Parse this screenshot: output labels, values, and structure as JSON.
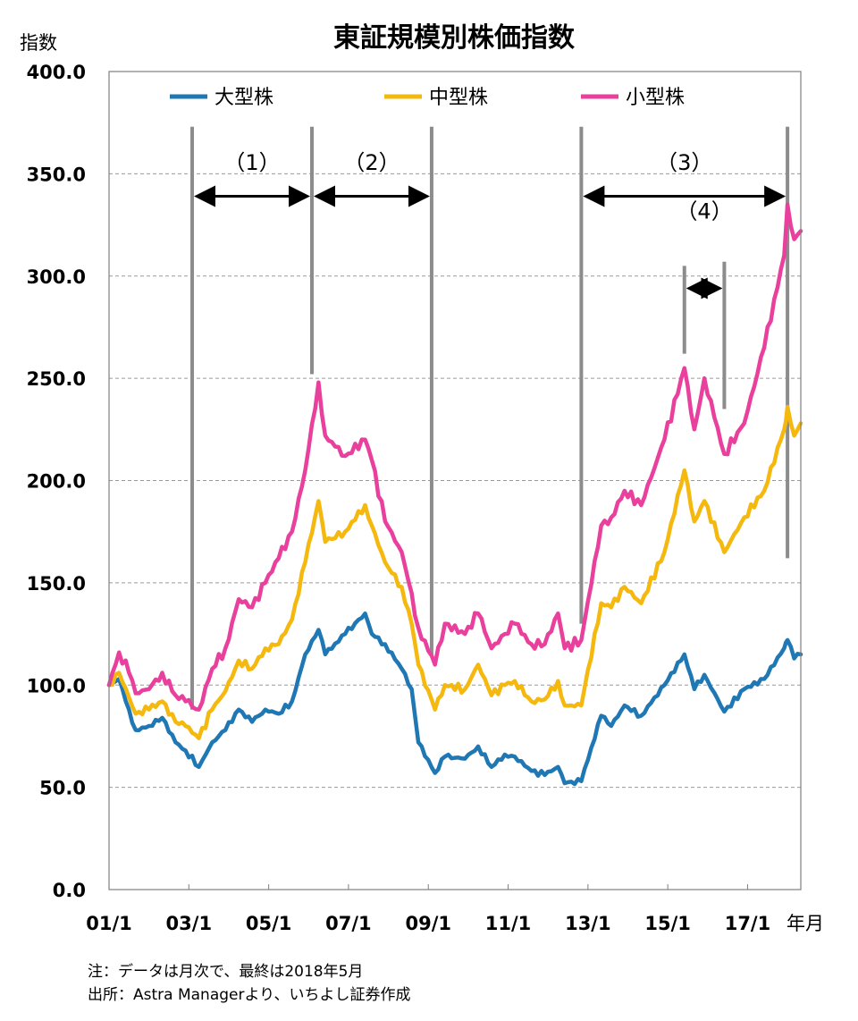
{
  "chart_data": {
    "type": "line",
    "title": "東証規模別株価指数",
    "ylabel": "指数",
    "xlabel": "年月",
    "ylim": [
      0,
      400
    ],
    "yticks": [
      "0.0",
      "50.0",
      "100.0",
      "150.0",
      "200.0",
      "250.0",
      "300.0",
      "350.0",
      "400.0"
    ],
    "xlim": [
      "2001-01",
      "2018-05"
    ],
    "xtick_labels": [
      "01/1",
      "03/1",
      "05/1",
      "07/1",
      "09/1",
      "11/1",
      "13/1",
      "15/1",
      "17/1"
    ],
    "grid": true,
    "legend_position": "top",
    "series": [
      {
        "name": "大型株",
        "color": "#1f77b4",
        "points": [
          [
            "2001-01",
            100
          ],
          [
            "2001-04",
            103
          ],
          [
            "2001-07",
            88
          ],
          [
            "2001-09",
            78
          ],
          [
            "2002-01",
            80
          ],
          [
            "2002-05",
            84
          ],
          [
            "2002-09",
            72
          ],
          [
            "2002-12",
            68
          ],
          [
            "2003-04",
            60
          ],
          [
            "2003-08",
            72
          ],
          [
            "2003-12",
            78
          ],
          [
            "2004-04",
            88
          ],
          [
            "2004-08",
            82
          ],
          [
            "2004-12",
            88
          ],
          [
            "2005-04",
            86
          ],
          [
            "2005-08",
            92
          ],
          [
            "2005-12",
            115
          ],
          [
            "2006-04",
            127
          ],
          [
            "2006-06",
            115
          ],
          [
            "2006-12",
            125
          ],
          [
            "2007-06",
            135
          ],
          [
            "2007-08",
            125
          ],
          [
            "2007-12",
            120
          ],
          [
            "2008-05",
            108
          ],
          [
            "2008-08",
            98
          ],
          [
            "2008-10",
            72
          ],
          [
            "2009-03",
            57
          ],
          [
            "2009-06",
            65
          ],
          [
            "2009-12",
            64
          ],
          [
            "2010-04",
            70
          ],
          [
            "2010-08",
            60
          ],
          [
            "2010-12",
            66
          ],
          [
            "2011-03",
            65
          ],
          [
            "2011-08",
            58
          ],
          [
            "2011-12",
            56
          ],
          [
            "2012-04",
            60
          ],
          [
            "2012-06",
            52
          ],
          [
            "2012-11",
            53
          ],
          [
            "2013-05",
            85
          ],
          [
            "2013-08",
            80
          ],
          [
            "2013-12",
            90
          ],
          [
            "2014-05",
            85
          ],
          [
            "2014-12",
            100
          ],
          [
            "2015-06",
            115
          ],
          [
            "2015-09",
            98
          ],
          [
            "2015-12",
            105
          ],
          [
            "2016-06",
            87
          ],
          [
            "2016-12",
            98
          ],
          [
            "2017-06",
            103
          ],
          [
            "2017-12",
            118
          ],
          [
            "2018-01",
            122
          ],
          [
            "2018-03",
            113
          ],
          [
            "2018-05",
            115
          ]
        ]
      },
      {
        "name": "中型株",
        "color": "#f5b80f",
        "points": [
          [
            "2001-01",
            100
          ],
          [
            "2001-04",
            106
          ],
          [
            "2001-07",
            94
          ],
          [
            "2001-09",
            86
          ],
          [
            "2002-01",
            88
          ],
          [
            "2002-05",
            92
          ],
          [
            "2002-09",
            82
          ],
          [
            "2002-12",
            80
          ],
          [
            "2003-04",
            74
          ],
          [
            "2003-08",
            88
          ],
          [
            "2003-12",
            97
          ],
          [
            "2004-04",
            112
          ],
          [
            "2004-08",
            108
          ],
          [
            "2004-12",
            118
          ],
          [
            "2005-04",
            120
          ],
          [
            "2005-08",
            132
          ],
          [
            "2005-12",
            160
          ],
          [
            "2006-04",
            190
          ],
          [
            "2006-06",
            170
          ],
          [
            "2006-12",
            175
          ],
          [
            "2007-06",
            188
          ],
          [
            "2007-08",
            178
          ],
          [
            "2007-12",
            160
          ],
          [
            "2008-05",
            148
          ],
          [
            "2008-08",
            130
          ],
          [
            "2008-10",
            110
          ],
          [
            "2009-03",
            88
          ],
          [
            "2009-06",
            100
          ],
          [
            "2009-12",
            98
          ],
          [
            "2010-04",
            110
          ],
          [
            "2010-08",
            95
          ],
          [
            "2010-12",
            100
          ],
          [
            "2011-03",
            102
          ],
          [
            "2011-08",
            92
          ],
          [
            "2011-12",
            93
          ],
          [
            "2012-04",
            102
          ],
          [
            "2012-06",
            90
          ],
          [
            "2012-11",
            90
          ],
          [
            "2013-05",
            140
          ],
          [
            "2013-08",
            138
          ],
          [
            "2013-12",
            148
          ],
          [
            "2014-05",
            140
          ],
          [
            "2014-12",
            165
          ],
          [
            "2015-06",
            205
          ],
          [
            "2015-09",
            180
          ],
          [
            "2015-12",
            190
          ],
          [
            "2016-06",
            165
          ],
          [
            "2016-12",
            182
          ],
          [
            "2017-06",
            195
          ],
          [
            "2017-12",
            225
          ],
          [
            "2018-01",
            236
          ],
          [
            "2018-03",
            222
          ],
          [
            "2018-05",
            228
          ]
        ]
      },
      {
        "name": "小型株",
        "color": "#e8409c",
        "points": [
          [
            "2001-01",
            100
          ],
          [
            "2001-04",
            116
          ],
          [
            "2001-07",
            106
          ],
          [
            "2001-09",
            96
          ],
          [
            "2002-01",
            98
          ],
          [
            "2002-05",
            106
          ],
          [
            "2002-09",
            95
          ],
          [
            "2002-12",
            92
          ],
          [
            "2003-04",
            88
          ],
          [
            "2003-08",
            108
          ],
          [
            "2003-12",
            118
          ],
          [
            "2004-04",
            142
          ],
          [
            "2004-08",
            138
          ],
          [
            "2004-12",
            150
          ],
          [
            "2005-04",
            162
          ],
          [
            "2005-08",
            175
          ],
          [
            "2005-12",
            205
          ],
          [
            "2006-04",
            248
          ],
          [
            "2006-06",
            222
          ],
          [
            "2006-12",
            212
          ],
          [
            "2007-06",
            220
          ],
          [
            "2007-08",
            210
          ],
          [
            "2007-12",
            180
          ],
          [
            "2008-05",
            165
          ],
          [
            "2008-08",
            145
          ],
          [
            "2008-10",
            128
          ],
          [
            "2009-03",
            110
          ],
          [
            "2009-06",
            130
          ],
          [
            "2009-12",
            125
          ],
          [
            "2010-04",
            135
          ],
          [
            "2010-08",
            118
          ],
          [
            "2010-12",
            125
          ],
          [
            "2011-03",
            130
          ],
          [
            "2011-08",
            120
          ],
          [
            "2011-12",
            120
          ],
          [
            "2012-04",
            135
          ],
          [
            "2012-06",
            118
          ],
          [
            "2012-11",
            122
          ],
          [
            "2013-05",
            178
          ],
          [
            "2013-08",
            182
          ],
          [
            "2013-12",
            195
          ],
          [
            "2014-05",
            188
          ],
          [
            "2014-12",
            220
          ],
          [
            "2015-06",
            255
          ],
          [
            "2015-09",
            225
          ],
          [
            "2015-12",
            250
          ],
          [
            "2016-06",
            213
          ],
          [
            "2016-12",
            228
          ],
          [
            "2017-06",
            265
          ],
          [
            "2017-12",
            310
          ],
          [
            "2018-01",
            335
          ],
          [
            "2018-03",
            318
          ],
          [
            "2018-05",
            322
          ]
        ]
      }
    ],
    "annotations": [
      {
        "label": "（1）",
        "from": "2003-02",
        "to": "2006-02"
      },
      {
        "label": "（2）",
        "from": "2006-02",
        "to": "2009-02"
      },
      {
        "label": "（3）",
        "from": "2012-11",
        "to": "2018-01"
      },
      {
        "label": "（4）",
        "from": "2015-06",
        "to": "2016-06"
      }
    ],
    "vertical_markers": [
      {
        "date": "2003-02",
        "from": 88,
        "to": 373
      },
      {
        "date": "2006-02",
        "from": 252,
        "to": 373
      },
      {
        "date": "2009-02",
        "from": 115,
        "to": 373
      },
      {
        "date": "2012-11",
        "from": 130,
        "to": 373
      },
      {
        "date": "2015-06",
        "from": 262,
        "to": 305
      },
      {
        "date": "2016-06",
        "from": 235,
        "to": 307
      },
      {
        "date": "2018-01",
        "from": 162,
        "to": 373
      }
    ]
  },
  "footnote": {
    "line1": "注：データは月次で、最終は2018年5月",
    "line2": "出所：Astra Managerより、いちよし証券作成"
  }
}
